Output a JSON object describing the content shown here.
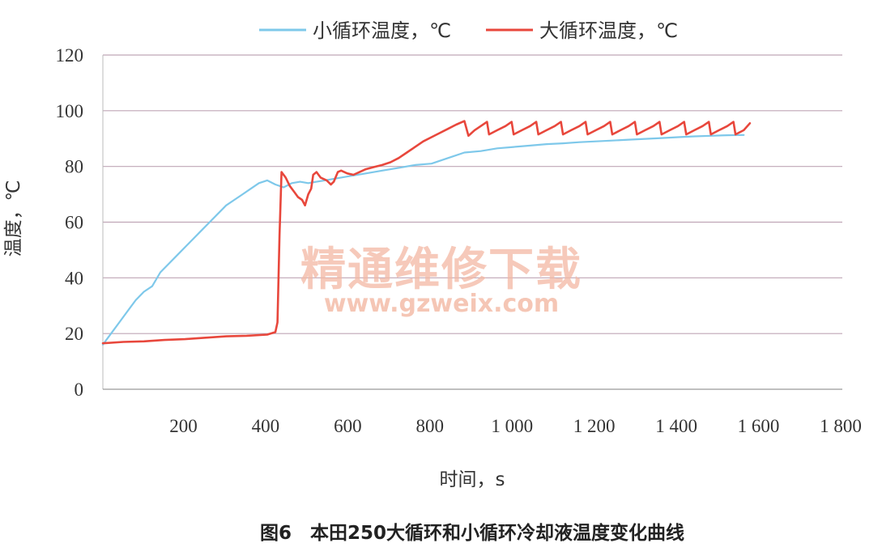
{
  "colors": {
    "small_loop": "#7ec8ea",
    "large_loop": "#e8473c",
    "grid": "#bfa6b6",
    "watermark": "#f3b8a3"
  },
  "watermark": {
    "text_cn": "精通维修下载",
    "url": "www.gzweix.com"
  },
  "caption": "图6　本田250大循环和小循环冷却液温度变化曲线",
  "chart_data": {
    "type": "line",
    "title": "",
    "xlabel": "时间，s",
    "ylabel": "温度，℃",
    "xlim": [
      0,
      1800
    ],
    "ylim": [
      0,
      120
    ],
    "x_ticks": [
      200,
      400,
      600,
      800,
      1000,
      1200,
      1400,
      1600,
      1800
    ],
    "x_tick_labels": [
      "200",
      "400",
      "600",
      "800",
      "1 000",
      "1 200",
      "1 400",
      "1 600",
      "1 800"
    ],
    "y_ticks": [
      0,
      20,
      40,
      60,
      80,
      100,
      120
    ],
    "y_tick_labels": [
      "0",
      "20",
      "40",
      "60",
      "80",
      "100",
      "120"
    ],
    "grid": "horizontal",
    "legend_position": "top-center",
    "series": [
      {
        "name": "小循环温度，℃",
        "color": "#7ec8ea",
        "points": [
          [
            0,
            16
          ],
          [
            20,
            20
          ],
          [
            40,
            24
          ],
          [
            60,
            28
          ],
          [
            80,
            32
          ],
          [
            100,
            35
          ],
          [
            120,
            37
          ],
          [
            140,
            42
          ],
          [
            160,
            45
          ],
          [
            180,
            48
          ],
          [
            200,
            51
          ],
          [
            220,
            54
          ],
          [
            240,
            57
          ],
          [
            260,
            60
          ],
          [
            280,
            63
          ],
          [
            300,
            66
          ],
          [
            320,
            68
          ],
          [
            340,
            70
          ],
          [
            360,
            72
          ],
          [
            380,
            74
          ],
          [
            400,
            75
          ],
          [
            420,
            73.5
          ],
          [
            440,
            72.5
          ],
          [
            460,
            74
          ],
          [
            480,
            74.5
          ],
          [
            500,
            74
          ],
          [
            520,
            74.5
          ],
          [
            540,
            75
          ],
          [
            560,
            75.5
          ],
          [
            580,
            76
          ],
          [
            600,
            76.5
          ],
          [
            640,
            77.5
          ],
          [
            680,
            78.5
          ],
          [
            720,
            79.5
          ],
          [
            760,
            80.5
          ],
          [
            800,
            81
          ],
          [
            840,
            83
          ],
          [
            880,
            85
          ],
          [
            920,
            85.5
          ],
          [
            960,
            86.5
          ],
          [
            1000,
            87
          ],
          [
            1040,
            87.5
          ],
          [
            1080,
            88
          ],
          [
            1120,
            88.3
          ],
          [
            1160,
            88.7
          ],
          [
            1200,
            89
          ],
          [
            1240,
            89.3
          ],
          [
            1280,
            89.6
          ],
          [
            1320,
            89.9
          ],
          [
            1360,
            90.2
          ],
          [
            1400,
            90.5
          ],
          [
            1440,
            90.8
          ],
          [
            1480,
            91
          ],
          [
            1520,
            91.2
          ],
          [
            1560,
            91.3
          ]
        ]
      },
      {
        "name": "大循环温度，℃",
        "color": "#e8473c",
        "points": [
          [
            0,
            16.5
          ],
          [
            50,
            17
          ],
          [
            100,
            17.2
          ],
          [
            150,
            17.7
          ],
          [
            200,
            18
          ],
          [
            250,
            18.5
          ],
          [
            300,
            19
          ],
          [
            350,
            19.2
          ],
          [
            400,
            19.6
          ],
          [
            420,
            20.5
          ],
          [
            425,
            24
          ],
          [
            430,
            55
          ],
          [
            435,
            78
          ],
          [
            445,
            76
          ],
          [
            455,
            73
          ],
          [
            465,
            71
          ],
          [
            475,
            69
          ],
          [
            485,
            68
          ],
          [
            492,
            66
          ],
          [
            500,
            70
          ],
          [
            507,
            72
          ],
          [
            512,
            77
          ],
          [
            520,
            78
          ],
          [
            530,
            76
          ],
          [
            545,
            75
          ],
          [
            555,
            73.5
          ],
          [
            562,
            74.5
          ],
          [
            572,
            78
          ],
          [
            580,
            78.5
          ],
          [
            595,
            77.5
          ],
          [
            610,
            77
          ],
          [
            625,
            78
          ],
          [
            640,
            79
          ],
          [
            660,
            79.8
          ],
          [
            680,
            80.5
          ],
          [
            700,
            81.5
          ],
          [
            720,
            83
          ],
          [
            740,
            85
          ],
          [
            760,
            87
          ],
          [
            780,
            89
          ],
          [
            800,
            90.5
          ],
          [
            820,
            92
          ],
          [
            840,
            93.5
          ],
          [
            860,
            95
          ],
          [
            880,
            96.3
          ],
          [
            890,
            91
          ],
          [
            905,
            93
          ],
          [
            920,
            94.5
          ],
          [
            935,
            96
          ],
          [
            940,
            91.5
          ],
          [
            960,
            93
          ],
          [
            980,
            94.5
          ],
          [
            995,
            96
          ],
          [
            1000,
            91.5
          ],
          [
            1020,
            93
          ],
          [
            1040,
            94.5
          ],
          [
            1055,
            96
          ],
          [
            1060,
            91.5
          ],
          [
            1080,
            93
          ],
          [
            1100,
            94.5
          ],
          [
            1115,
            96
          ],
          [
            1120,
            91.5
          ],
          [
            1140,
            93
          ],
          [
            1160,
            94.5
          ],
          [
            1175,
            96
          ],
          [
            1180,
            91.5
          ],
          [
            1200,
            93
          ],
          [
            1220,
            94.5
          ],
          [
            1235,
            96
          ],
          [
            1240,
            91.5
          ],
          [
            1260,
            93
          ],
          [
            1280,
            94.5
          ],
          [
            1295,
            96
          ],
          [
            1300,
            91.5
          ],
          [
            1320,
            93
          ],
          [
            1340,
            94.5
          ],
          [
            1355,
            96
          ],
          [
            1360,
            91.5
          ],
          [
            1380,
            93
          ],
          [
            1400,
            94.5
          ],
          [
            1415,
            96
          ],
          [
            1420,
            91.5
          ],
          [
            1440,
            93
          ],
          [
            1460,
            94.5
          ],
          [
            1475,
            96
          ],
          [
            1480,
            91.5
          ],
          [
            1500,
            93
          ],
          [
            1520,
            94.5
          ],
          [
            1535,
            96
          ],
          [
            1540,
            91.5
          ],
          [
            1560,
            93
          ],
          [
            1575,
            95.5
          ]
        ]
      }
    ]
  }
}
